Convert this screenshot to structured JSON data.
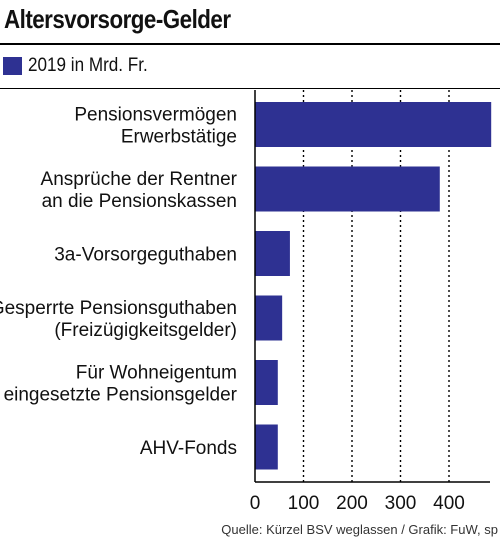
{
  "title": "Altersvorsorge-Gelder",
  "source": "Quelle: Kürzel BSV weglassen / Grafik: FuW, sp",
  "colors": {
    "bar": "#2e3192",
    "grid": "#000000"
  },
  "chart_data": {
    "type": "bar",
    "orientation": "horizontal",
    "categories": [
      [
        "Pensionsvermögen",
        "Erwerbstätige"
      ],
      [
        "Ansprüche der Rentner",
        "an die Pensionskassen"
      ],
      [
        "3a-Vorsorgeguthaben"
      ],
      [
        "Gesperrte Pensionsguthaben",
        "(Freizügigkeitsgelder)"
      ],
      [
        "Für Wohneigentum",
        "eingesetzte Pensionsgelder"
      ],
      [
        "AHV-Fonds"
      ]
    ],
    "series": [
      {
        "name": "2019 in Mrd. Fr.",
        "values": [
          487,
          381,
          72,
          56,
          47,
          47
        ]
      }
    ],
    "xlim": [
      0,
      490
    ],
    "xticks": [
      0,
      100,
      200,
      300,
      400
    ],
    "grid": "vertical dotted",
    "legend": "top-left"
  }
}
